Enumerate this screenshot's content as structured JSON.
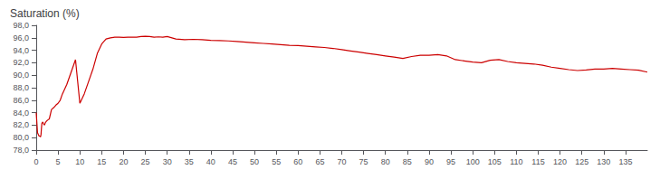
{
  "chart_data": {
    "type": "line",
    "title": "Saturation (%)",
    "color": "#cc0000",
    "grid": false,
    "xlim": [
      0,
      140
    ],
    "ylim": [
      78.0,
      98.0
    ],
    "xticks": [
      0,
      5,
      10,
      15,
      20,
      25,
      30,
      35,
      40,
      45,
      50,
      55,
      60,
      65,
      70,
      75,
      80,
      85,
      90,
      95,
      100,
      105,
      110,
      115,
      120,
      125,
      130,
      135
    ],
    "yticks": [
      {
        "value": 78.0,
        "label": "78,0"
      },
      {
        "value": 80.0,
        "label": "80,0"
      },
      {
        "value": 82.0,
        "label": "82,0"
      },
      {
        "value": 84.0,
        "label": "84,0"
      },
      {
        "value": 86.0,
        "label": "86,0"
      },
      {
        "value": 88.0,
        "label": "88,0"
      },
      {
        "value": 90.0,
        "label": "90,0"
      },
      {
        "value": 92.0,
        "label": "92,0"
      },
      {
        "value": 94.0,
        "label": "94,0"
      },
      {
        "value": 96.0,
        "label": "96,0"
      },
      {
        "value": 98.0,
        "label": "98,0"
      }
    ],
    "x": [
      0,
      0.3,
      0.6,
      0.9,
      1.0,
      1.1,
      1.2,
      1.3,
      1.5,
      1.7,
      1.9,
      2.1,
      2.3,
      2.6,
      3.0,
      3.5,
      4.0,
      4.5,
      5.0,
      5.5,
      6.0,
      7.0,
      8.0,
      9.0,
      10.0,
      11.0,
      12.0,
      13.0,
      14.0,
      15.0,
      16.0,
      17.0,
      18.0,
      19.0,
      20.0,
      21.0,
      22.0,
      23.0,
      24.0,
      25.0,
      26.0,
      27.0,
      28.0,
      29.0,
      30.0,
      32.0,
      34.0,
      36.0,
      38.0,
      40.0,
      42.0,
      44.0,
      46.0,
      48.0,
      50.0,
      52.0,
      54.0,
      56.0,
      58.0,
      60.0,
      62.0,
      64.0,
      66.0,
      68.0,
      70.0,
      72.0,
      74.0,
      76.0,
      78.0,
      80.0,
      82.0,
      84.0,
      86.0,
      88.0,
      90.0,
      92.0,
      94.0,
      96.0,
      98.0,
      100.0,
      102.0,
      104.0,
      106.0,
      108.0,
      110.0,
      112.0,
      114.0,
      116.0,
      118.0,
      120.0,
      122.0,
      124.0,
      126.0,
      128.0,
      130.0,
      132.0,
      134.0,
      136.0,
      138.0,
      140.0
    ],
    "values": [
      84.0,
      80.8,
      80.3,
      80.2,
      80.1,
      80.5,
      81.5,
      82.3,
      82.5,
      82.2,
      82.0,
      82.4,
      82.6,
      82.8,
      83.0,
      84.5,
      84.8,
      85.2,
      85.5,
      86.0,
      87.0,
      88.5,
      90.5,
      92.5,
      85.5,
      87.0,
      89.0,
      91.0,
      93.5,
      95.0,
      95.8,
      96.0,
      96.1,
      96.1,
      96.05,
      96.1,
      96.1,
      96.1,
      96.2,
      96.25,
      96.2,
      96.1,
      96.15,
      96.1,
      96.2,
      95.8,
      95.7,
      95.75,
      95.7,
      95.6,
      95.55,
      95.5,
      95.4,
      95.3,
      95.2,
      95.1,
      95.0,
      94.9,
      94.8,
      94.75,
      94.65,
      94.55,
      94.45,
      94.3,
      94.1,
      93.9,
      93.7,
      93.5,
      93.3,
      93.1,
      92.9,
      92.7,
      93.0,
      93.2,
      93.2,
      93.3,
      93.1,
      92.5,
      92.3,
      92.1,
      92.0,
      92.4,
      92.5,
      92.2,
      92.0,
      91.9,
      91.8,
      91.6,
      91.3,
      91.1,
      90.9,
      90.75,
      90.85,
      91.0,
      91.0,
      91.1,
      91.0,
      90.9,
      90.8,
      90.5
    ]
  }
}
